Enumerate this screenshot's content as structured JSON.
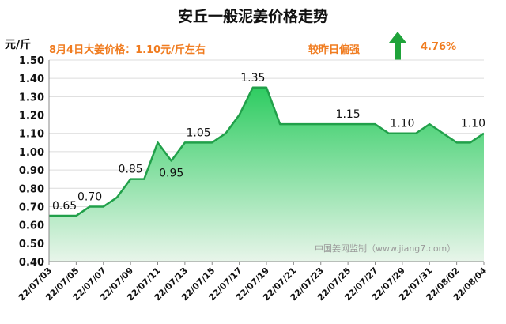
{
  "chart_data": {
    "type": "area",
    "title": "安丘一般泥姜价格走势",
    "ylabel": "元/斤",
    "ylim": [
      0.4,
      1.5
    ],
    "yticks": [
      "0.40",
      "0.50",
      "0.60",
      "0.70",
      "0.80",
      "0.90",
      "1.00",
      "1.10",
      "1.20",
      "1.30",
      "1.40",
      "1.50"
    ],
    "x": [
      "22/07/03",
      "22/07/04",
      "22/07/05",
      "22/07/06",
      "22/07/07",
      "22/07/08",
      "22/07/09",
      "22/07/10",
      "22/07/11",
      "22/07/12",
      "22/07/13",
      "22/07/14",
      "22/07/15",
      "22/07/16",
      "22/07/17",
      "22/07/18",
      "22/07/19",
      "22/07/20",
      "22/07/21",
      "22/07/22",
      "22/07/23",
      "22/07/24",
      "22/07/25",
      "22/07/26",
      "22/07/27",
      "22/07/28",
      "22/07/29",
      "22/07/30",
      "22/07/31",
      "22/08/01",
      "22/08/02",
      "22/08/03",
      "22/08/04"
    ],
    "xtick_labels": [
      "22/07/03",
      "22/07/05",
      "22/07/07",
      "22/07/09",
      "22/07/11",
      "22/07/13",
      "22/07/15",
      "22/07/17",
      "22/07/19",
      "22/07/21",
      "22/07/23",
      "22/07/25",
      "22/07/27",
      "22/07/29",
      "22/07/31",
      "22/08/02",
      "22/08/04"
    ],
    "series": [
      {
        "values": [
          0.65,
          0.65,
          0.65,
          0.7,
          0.7,
          0.75,
          0.85,
          0.85,
          1.05,
          0.95,
          1.05,
          1.05,
          1.05,
          1.1,
          1.2,
          1.35,
          1.35,
          1.15,
          1.15,
          1.15,
          1.15,
          1.15,
          1.15,
          1.15,
          1.15,
          1.1,
          1.1,
          1.1,
          1.15,
          1.1,
          1.05,
          1.05,
          1.1
        ]
      }
    ],
    "data_labels": [
      {
        "index": 0,
        "text": "0.65"
      },
      {
        "index": 3,
        "text": "0.70"
      },
      {
        "index": 6,
        "text": "0.85"
      },
      {
        "index": 9,
        "text": "0.95"
      },
      {
        "index": 11,
        "text": "1.05"
      },
      {
        "index": 15,
        "text": "1.35"
      },
      {
        "index": 22,
        "text": "1.15"
      },
      {
        "index": 26,
        "text": "1.10"
      },
      {
        "index": 32,
        "text": "1.10"
      }
    ],
    "grid": true
  },
  "header": {
    "price_info": "8月4日大姜价格：1.10元/斤左右",
    "compare_label": "较昨日偏强",
    "change": "4.76%",
    "arrow_icon": "up-arrow-icon"
  },
  "watermark": "中国姜网监制（www.jiang7.com）",
  "colors": {
    "line": "#21a04a",
    "fill_top": "#2ecc61",
    "fill_bottom": "#e8f5ea",
    "accent": "#f07c20",
    "arrow": "#1fa33a"
  }
}
